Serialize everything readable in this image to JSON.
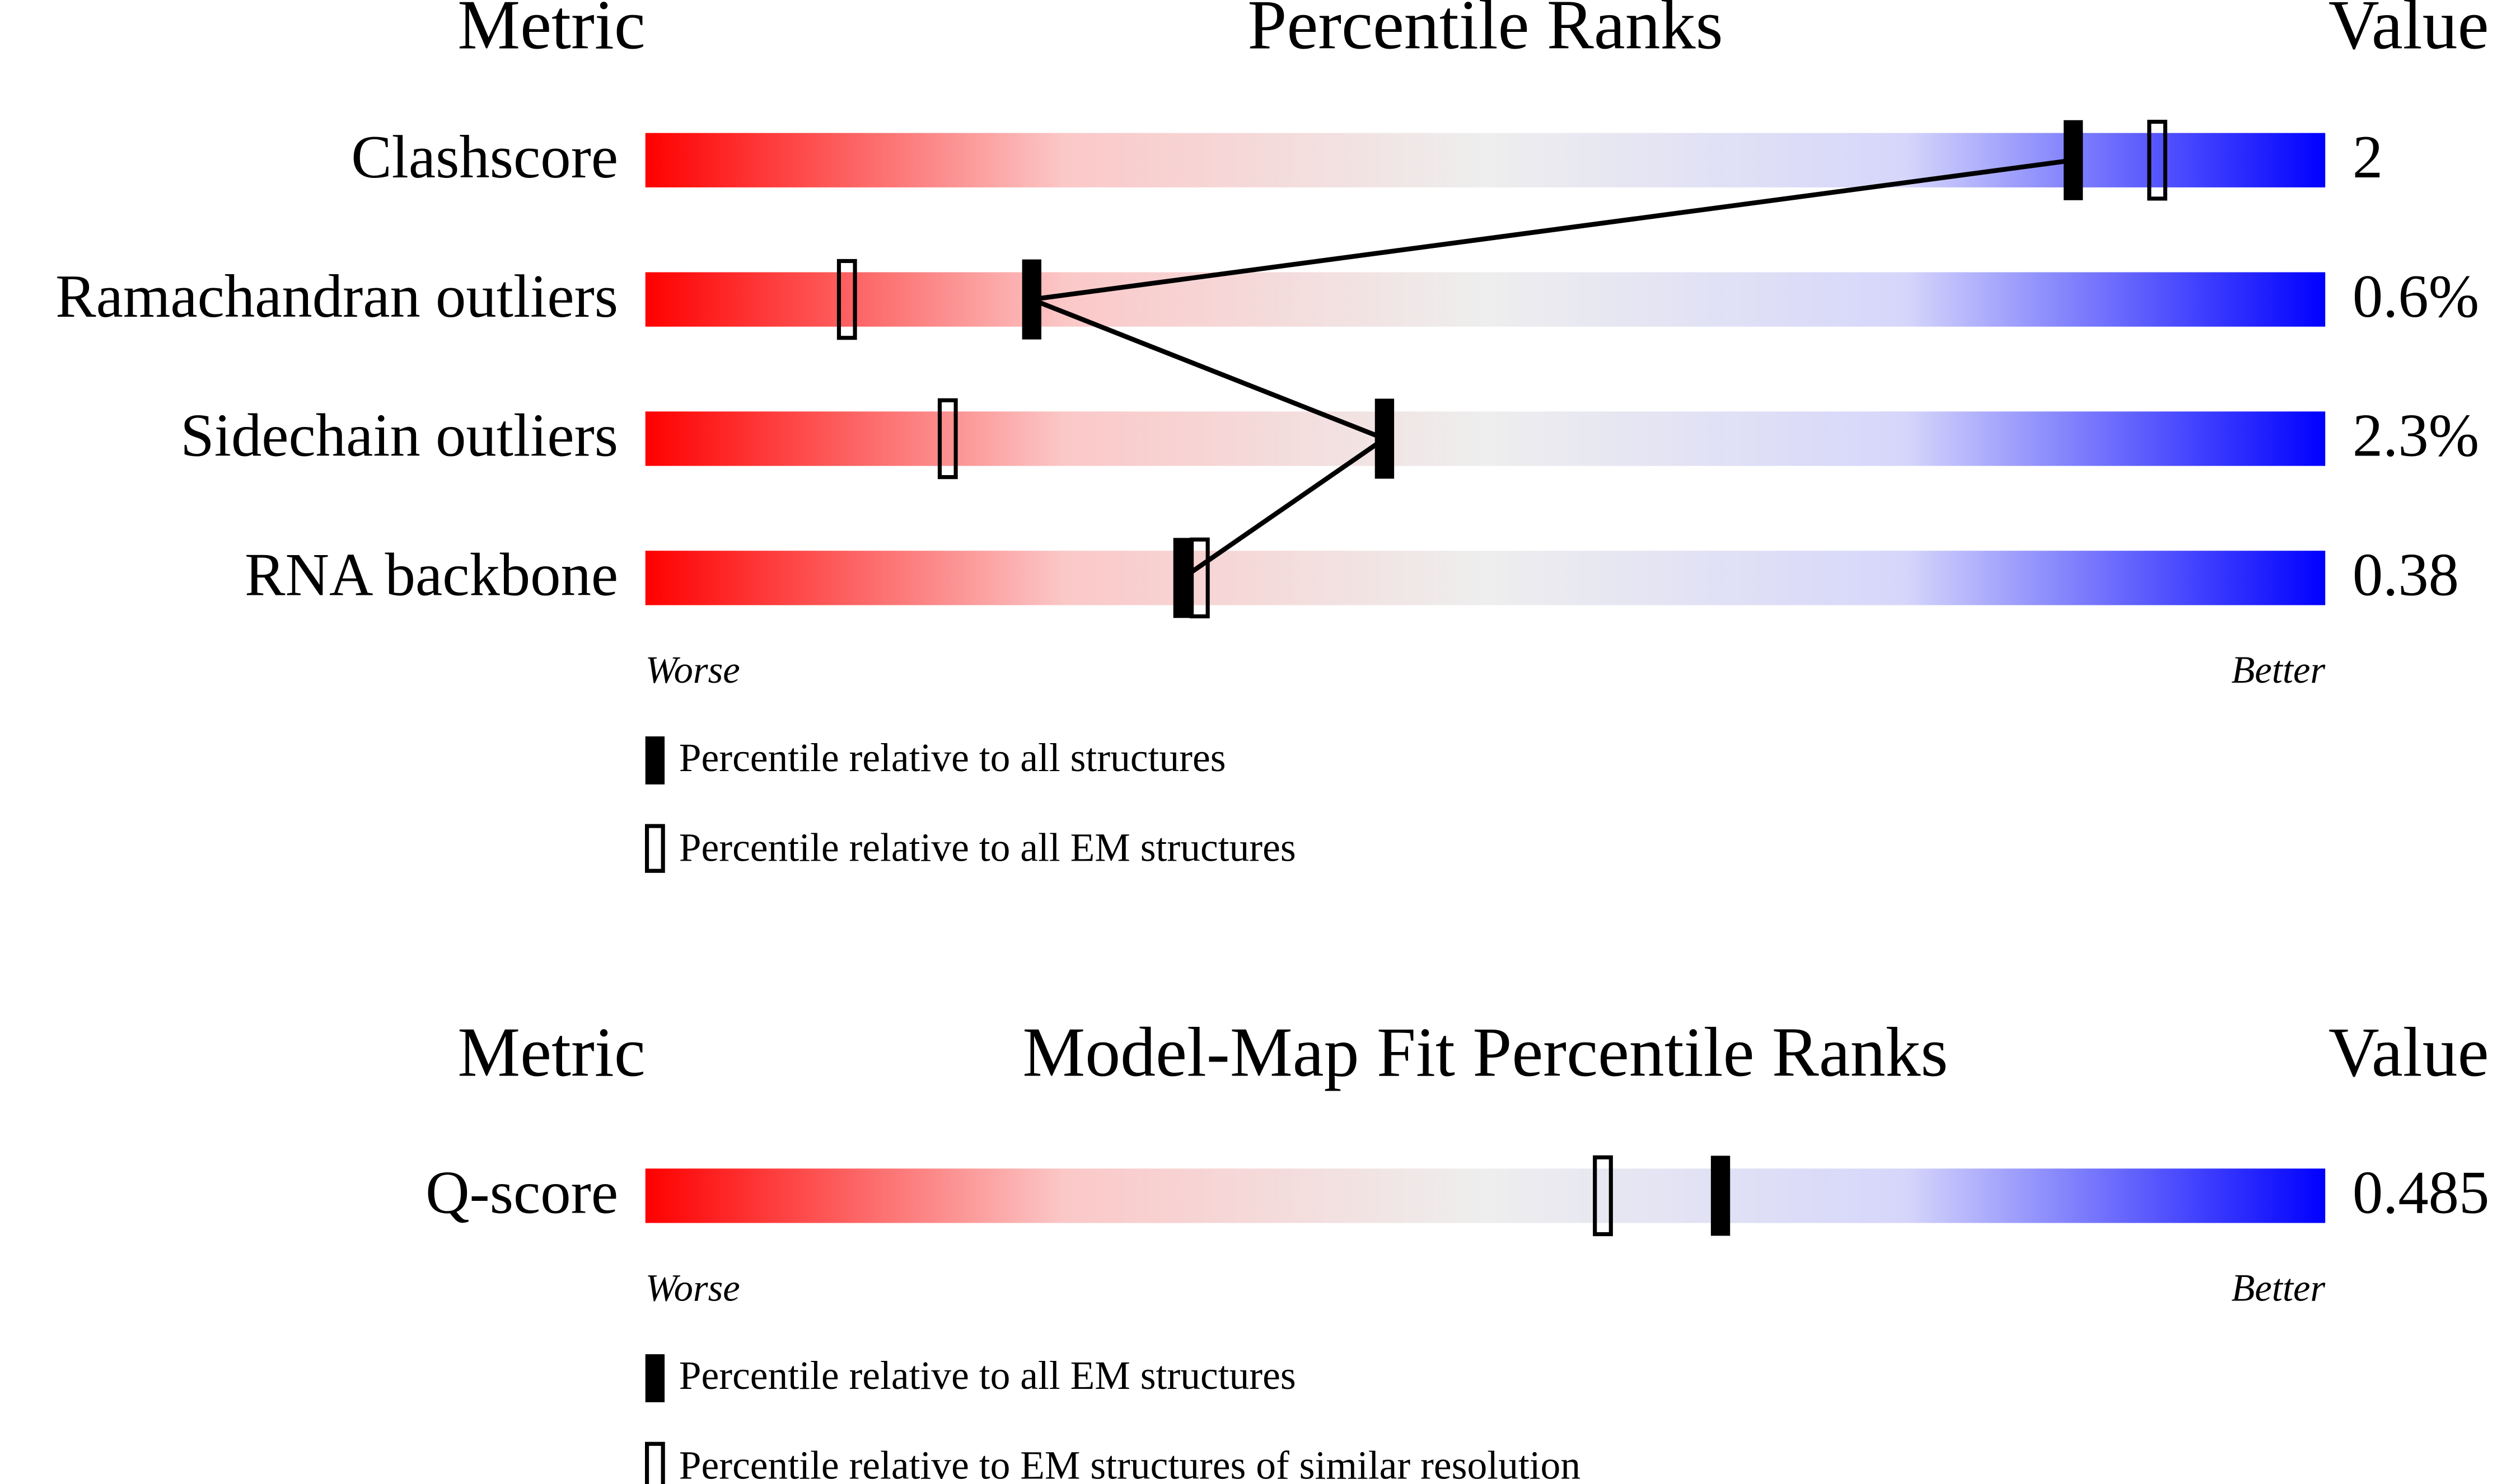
{
  "chart_data": [
    {
      "type": "slider",
      "title": "Percentile Ranks",
      "left_header": "Metric",
      "right_header": "Value",
      "categories": [
        "Clashscore",
        "Ramachandran outliers",
        "Sidechain outliers",
        "RNA backbone"
      ],
      "metric_values": [
        "2",
        "0.6%",
        "2.3%",
        "0.38"
      ],
      "xlim": [
        0,
        100
      ],
      "low_label": "Worse",
      "high_label": "Better",
      "gradient": [
        "#ff0000",
        "#fbc8c8",
        "#eeeeee",
        "#d6d6fb",
        "#0000ff"
      ],
      "series": [
        {
          "name": "Percentile relative to all structures",
          "color": "#000000",
          "filled": true,
          "connect": true,
          "values": [
            85,
            23,
            44,
            32
          ]
        },
        {
          "name": "Percentile relative to all EM structures",
          "color": "#000000",
          "filled": false,
          "values": [
            90,
            12,
            18,
            33
          ]
        }
      ]
    },
    {
      "type": "slider",
      "title": "Model-Map Fit Percentile Ranks",
      "left_header": "Metric",
      "right_header": "Value",
      "categories": [
        "Q-score"
      ],
      "metric_values": [
        "0.485"
      ],
      "xlim": [
        0,
        100
      ],
      "low_label": "Worse",
      "high_label": "Better",
      "gradient": [
        "#ff0000",
        "#fbc8c8",
        "#eeeeee",
        "#d6d6fb",
        "#0000ff"
      ],
      "series": [
        {
          "name": "Percentile relative to all EM structures",
          "color": "#000000",
          "filled": true,
          "values": [
            64
          ]
        },
        {
          "name": "Percentile relative to EM structures of similar resolution",
          "color": "#000000",
          "filled": false,
          "values": [
            57
          ]
        }
      ]
    }
  ]
}
